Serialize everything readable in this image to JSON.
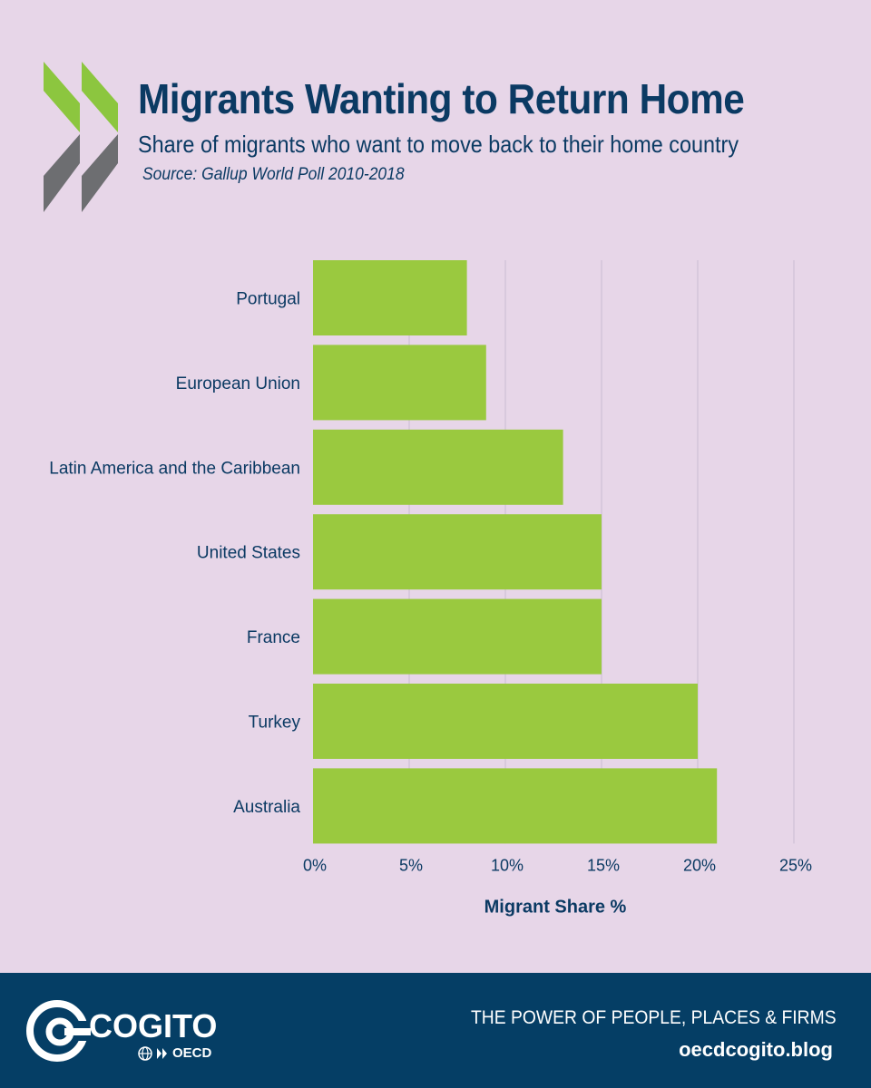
{
  "header": {
    "title": "Migrants Wanting to Return Home",
    "subtitle": "Share of migrants who want to move back to their home country",
    "source": "Source: Gallup World Poll 2010-2018"
  },
  "chart_data": {
    "type": "bar",
    "orientation": "horizontal",
    "categories": [
      "Portugal",
      "European Union",
      "Latin America and the Caribbean",
      "United States",
      "France",
      "Turkey",
      "Australia"
    ],
    "values": [
      8,
      9,
      13,
      15,
      15,
      20,
      21
    ],
    "xlabel": "Migrant Share %",
    "ylabel": "",
    "xlim": [
      0,
      25
    ],
    "ticks": [
      "0%",
      "5%",
      "10%",
      "15%",
      "20%",
      "25%"
    ],
    "tick_values": [
      0,
      5,
      10,
      15,
      20,
      25
    ],
    "grid": true,
    "bar_color": "#9ac93f",
    "grid_color": "#c9bcd2"
  },
  "footer": {
    "brand": "COGITO",
    "brand_sub": "OECD",
    "tagline": "THE POWER OF PEOPLE, PLACES & FIRMS",
    "url": "oecdcogito.blog"
  },
  "colors": {
    "background": "#e7d6e8",
    "text": "#0b3a63",
    "footer": "#053e65",
    "chevron_green": "#8cc63f",
    "chevron_gray": "#6d6e71"
  },
  "icons": {
    "logo": "oecd-chevrons-icon",
    "brand": "cogito-c-icon",
    "globe": "globe-icon"
  }
}
